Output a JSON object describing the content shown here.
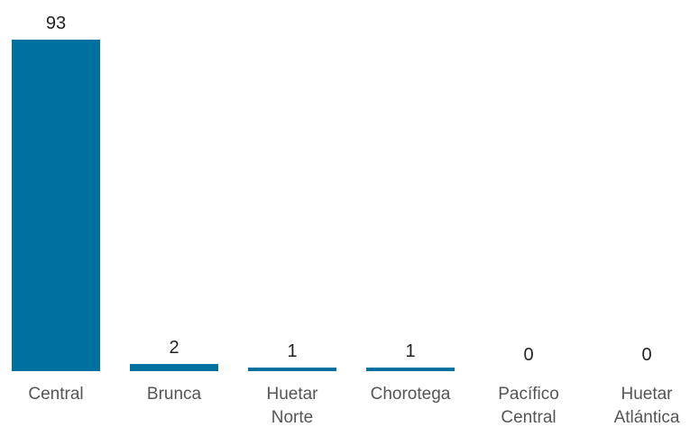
{
  "chart_data": {
    "type": "bar",
    "title": "",
    "xlabel": "",
    "ylabel": "",
    "categories": [
      [
        "Central"
      ],
      [
        "Brunca"
      ],
      [
        "Huetar",
        "Norte"
      ],
      [
        "Chorotega"
      ],
      [
        "Pacífico",
        "Central"
      ],
      [
        "Huetar",
        "Atlántica"
      ]
    ],
    "values": [
      93,
      2,
      1,
      1,
      0,
      0
    ],
    "ylim": [
      0,
      93
    ],
    "grid": false,
    "legend": "none",
    "colors": {
      "bar": "#0070a0"
    }
  }
}
